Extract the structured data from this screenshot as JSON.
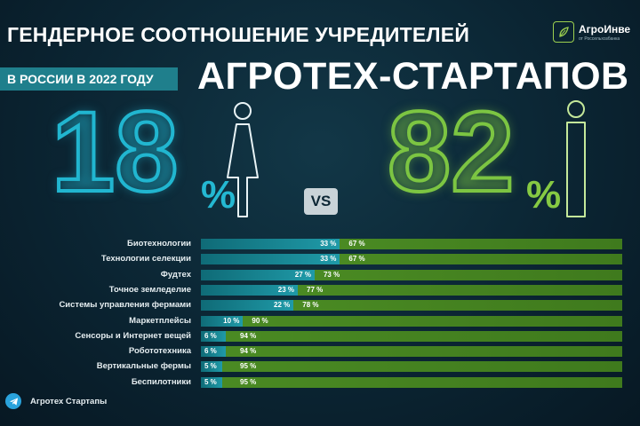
{
  "header": {
    "title_line1": "ГЕНДЕРНОЕ СООТНОШЕНИЕ УЧРЕДИТЕЛЕЙ",
    "subtitle": "В РОССИИ В 2022 ГОДУ",
    "title_line2": "АГРОТЕХ-СТАРТАПОВ"
  },
  "logo": {
    "name": "АгроИнве",
    "sub": "от Россельхозбанка"
  },
  "summary": {
    "women_value": "18",
    "men_value": "82",
    "percent_sign": "%",
    "vs": "VS",
    "women_icon": "woman-icon",
    "men_icon": "man-icon"
  },
  "colors": {
    "women": "#1f9aa8",
    "men": "#4a8a23",
    "background": "#0b2533"
  },
  "chart_data": {
    "type": "bar",
    "stacked": true,
    "orientation": "horizontal",
    "title": "",
    "xlabel": "",
    "ylabel": "",
    "xlim": [
      0,
      100
    ],
    "categories": [
      "Биотехнологии",
      "Технологии селекции",
      "Фудтех",
      "Точное земледелие",
      "Системы управления фермами",
      "Маркетплейсы",
      "Сенсоры и Интернет вещей",
      "Робототехника",
      "Вертикальные фермы",
      "Беспилотники"
    ],
    "series": [
      {
        "values": [
          33,
          33,
          27,
          23,
          22,
          10,
          6,
          6,
          5,
          5
        ]
      },
      {
        "values": [
          67,
          67,
          73,
          77,
          78,
          90,
          94,
          94,
          95,
          95
        ]
      }
    ],
    "value_suffix": " %"
  },
  "footer": {
    "icon": "telegram-icon",
    "text": "Агротех Стартапы"
  }
}
